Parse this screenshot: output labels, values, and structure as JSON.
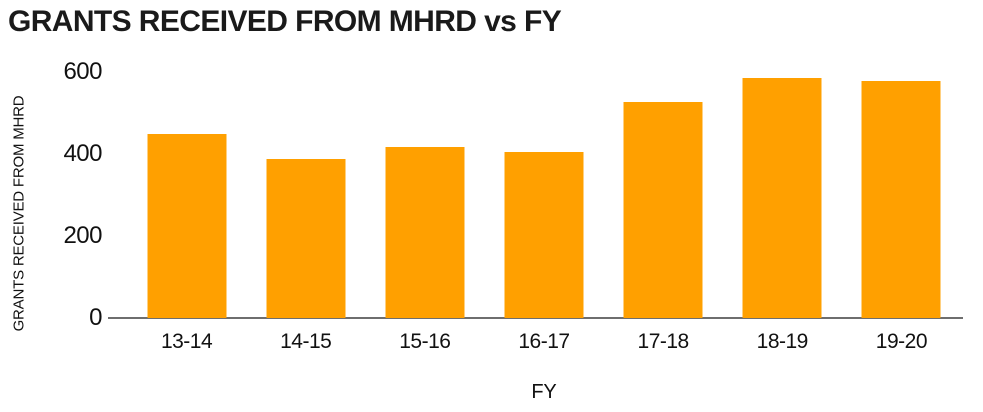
{
  "chart_data": {
    "type": "bar",
    "title": "GRANTS RECEIVED FROM MHRD vs FY",
    "xlabel": "FY",
    "ylabel": "GRANTS RECEIVED FROM MHRD",
    "categories": [
      "13-14",
      "14-15",
      "15-16",
      "16-17",
      "17-18",
      "18-19",
      "19-20"
    ],
    "values": [
      448,
      389,
      418,
      406,
      528,
      585,
      578
    ],
    "yticks": [
      0,
      200,
      400,
      600
    ],
    "ylim": [
      0,
      600
    ],
    "legend": null,
    "grid": false,
    "colors": {
      "bar": "#ffa000",
      "axis_line": "#6e6e6e",
      "text": "#111111",
      "title_text": "#1a1a1a",
      "background": "#ffffff"
    }
  }
}
